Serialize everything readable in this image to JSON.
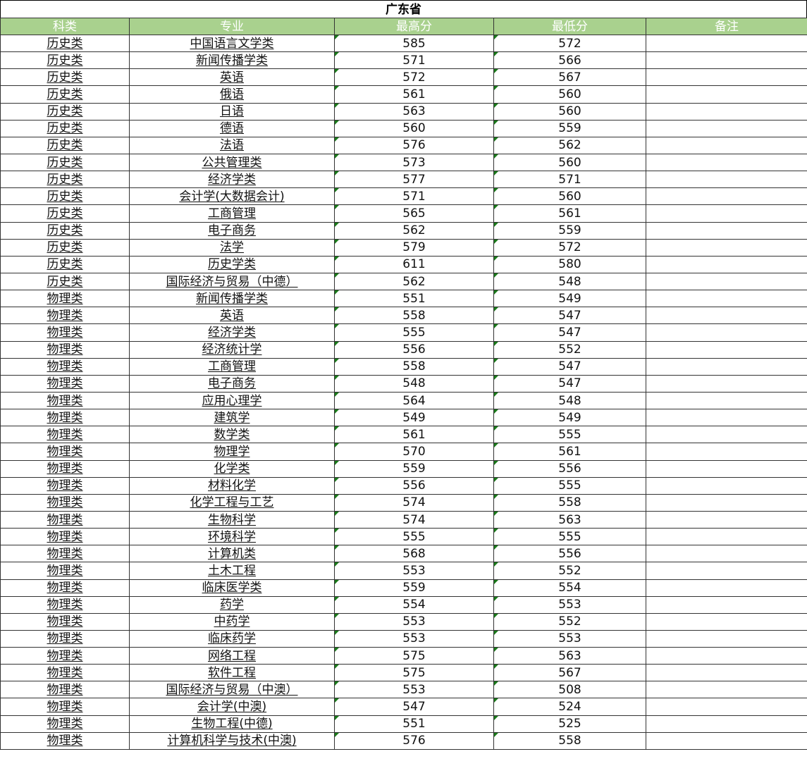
{
  "title": "广东省",
  "colors": {
    "header_bg": "#a9d18e",
    "header_text": "#ffffff",
    "error_marker": "#1a7a1a"
  },
  "columns": [
    "科类",
    "专业",
    "最高分",
    "最低分",
    "备注"
  ],
  "rows": [
    [
      "历史类",
      "中国语言文学类",
      "585",
      "572",
      ""
    ],
    [
      "历史类",
      "新闻传播学类",
      "571",
      "566",
      ""
    ],
    [
      "历史类",
      "英语",
      "572",
      "567",
      ""
    ],
    [
      "历史类",
      "俄语",
      "561",
      "560",
      ""
    ],
    [
      "历史类",
      "日语",
      "563",
      "560",
      ""
    ],
    [
      "历史类",
      "德语",
      "560",
      "559",
      ""
    ],
    [
      "历史类",
      "法语",
      "576",
      "562",
      ""
    ],
    [
      "历史类",
      "公共管理类",
      "573",
      "560",
      ""
    ],
    [
      "历史类",
      "经济学类",
      "577",
      "571",
      ""
    ],
    [
      "历史类",
      "会计学(大数据会计)",
      "571",
      "560",
      ""
    ],
    [
      "历史类",
      "工商管理",
      "565",
      "561",
      ""
    ],
    [
      "历史类",
      "电子商务",
      "562",
      "559",
      ""
    ],
    [
      "历史类",
      "法学",
      "579",
      "572",
      ""
    ],
    [
      "历史类",
      "历史学类",
      "611",
      "580",
      ""
    ],
    [
      "历史类",
      "国际经济与贸易（中德）",
      "562",
      "548",
      ""
    ],
    [
      "物理类",
      "新闻传播学类",
      "551",
      "549",
      ""
    ],
    [
      "物理类",
      "英语",
      "558",
      "547",
      ""
    ],
    [
      "物理类",
      "经济学类",
      "555",
      "547",
      ""
    ],
    [
      "物理类",
      "经济统计学",
      "556",
      "552",
      ""
    ],
    [
      "物理类",
      "工商管理",
      "558",
      "547",
      ""
    ],
    [
      "物理类",
      "电子商务",
      "548",
      "547",
      ""
    ],
    [
      "物理类",
      "应用心理学",
      "564",
      "548",
      ""
    ],
    [
      "物理类",
      "建筑学",
      "549",
      "549",
      ""
    ],
    [
      "物理类",
      "数学类",
      "561",
      "555",
      ""
    ],
    [
      "物理类",
      "物理学",
      "570",
      "561",
      ""
    ],
    [
      "物理类",
      "化学类",
      "559",
      "556",
      ""
    ],
    [
      "物理类",
      "材料化学",
      "556",
      "555",
      ""
    ],
    [
      "物理类",
      "化学工程与工艺",
      "574",
      "558",
      ""
    ],
    [
      "物理类",
      "生物科学",
      "574",
      "563",
      ""
    ],
    [
      "物理类",
      "环境科学",
      "555",
      "555",
      ""
    ],
    [
      "物理类",
      "计算机类",
      "568",
      "556",
      ""
    ],
    [
      "物理类",
      "土木工程",
      "553",
      "552",
      ""
    ],
    [
      "物理类",
      "临床医学类",
      "559",
      "554",
      ""
    ],
    [
      "物理类",
      "药学",
      "554",
      "553",
      ""
    ],
    [
      "物理类",
      "中药学",
      "553",
      "552",
      ""
    ],
    [
      "物理类",
      "临床药学",
      "553",
      "553",
      ""
    ],
    [
      "物理类",
      "网络工程",
      "575",
      "563",
      ""
    ],
    [
      "物理类",
      "软件工程",
      "575",
      "567",
      ""
    ],
    [
      "物理类",
      "国际经济与贸易（中澳）",
      "553",
      "508",
      ""
    ],
    [
      "物理类",
      "会计学(中澳)",
      "547",
      "524",
      ""
    ],
    [
      "物理类",
      "生物工程(中德)",
      "551",
      "525",
      ""
    ],
    [
      "物理类",
      "计算机科学与技术(中澳)",
      "576",
      "558",
      ""
    ]
  ]
}
